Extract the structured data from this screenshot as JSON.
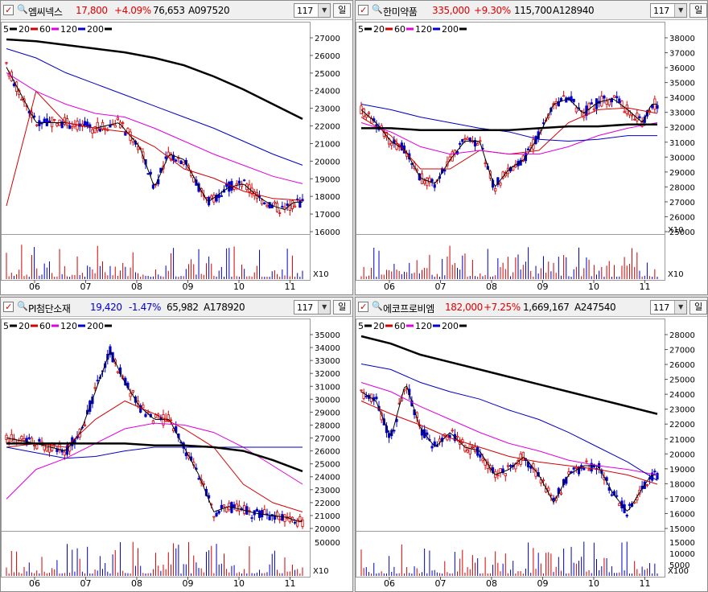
{
  "ma_legend": [
    {
      "label": "5",
      "color": "#000000"
    },
    {
      "label": "20",
      "color": "#d40000"
    },
    {
      "label": "60",
      "color": "#e000e0"
    },
    {
      "label": "120",
      "color": "#0000c8"
    },
    {
      "label": "200",
      "color": "#000000"
    }
  ],
  "months": [
    "06",
    "07",
    "08",
    "09",
    "10",
    "11"
  ],
  "panels": [
    {
      "name": "엠씨넥스",
      "price": "17,800",
      "change": "+4.09%",
      "change_dir": "up",
      "volume": "76,653",
      "code": "A097520",
      "period": "117",
      "unit": "일",
      "price_ticks": [
        "27000",
        "26000",
        "25000",
        "24000",
        "23000",
        "22000",
        "21000",
        "20000",
        "19000",
        "18000",
        "17000",
        "16000"
      ],
      "vol_ticks": [],
      "vol_unit": "X10",
      "vol_unit2": ""
    },
    {
      "name": "한미약품",
      "price": "335,000",
      "change": "+9.30%",
      "change_dir": "up",
      "volume": "115,700",
      "code": "A128940",
      "period": "117",
      "unit": "일",
      "price_ticks": [
        "38000",
        "37000",
        "36000",
        "35000",
        "34000",
        "33000",
        "32000",
        "31000",
        "30000",
        "29000",
        "28000",
        "27000",
        "26000",
        "25000"
      ],
      "vol_ticks": [],
      "vol_unit": "X10",
      "vol_unit2": "X10"
    },
    {
      "name": "PI첨단소재",
      "price": "19,420",
      "change": "-1.47%",
      "change_dir": "down",
      "volume": "65,982",
      "code": "A178920",
      "period": "117",
      "unit": "일",
      "price_ticks": [
        "35000",
        "34000",
        "33000",
        "32000",
        "31000",
        "30000",
        "29000",
        "28000",
        "27000",
        "26000",
        "25000",
        "24000",
        "23000",
        "22000",
        "21000",
        "20000"
      ],
      "vol_ticks": [
        "50000"
      ],
      "vol_unit": "X10",
      "vol_unit2": ""
    },
    {
      "name": "에코프로비엠",
      "price": "182,000",
      "change": "+7.25%",
      "change_dir": "up",
      "volume": "1,669,167",
      "code": "A247540",
      "period": "117",
      "unit": "일",
      "price_ticks": [
        "28000",
        "27000",
        "26000",
        "25000",
        "24000",
        "23000",
        "22000",
        "21000",
        "20000",
        "19000",
        "18000",
        "17000",
        "16000",
        "15000"
      ],
      "vol_ticks": [
        "15000",
        "10000",
        "5000"
      ],
      "vol_unit": "X100",
      "vol_unit2": ""
    }
  ]
}
